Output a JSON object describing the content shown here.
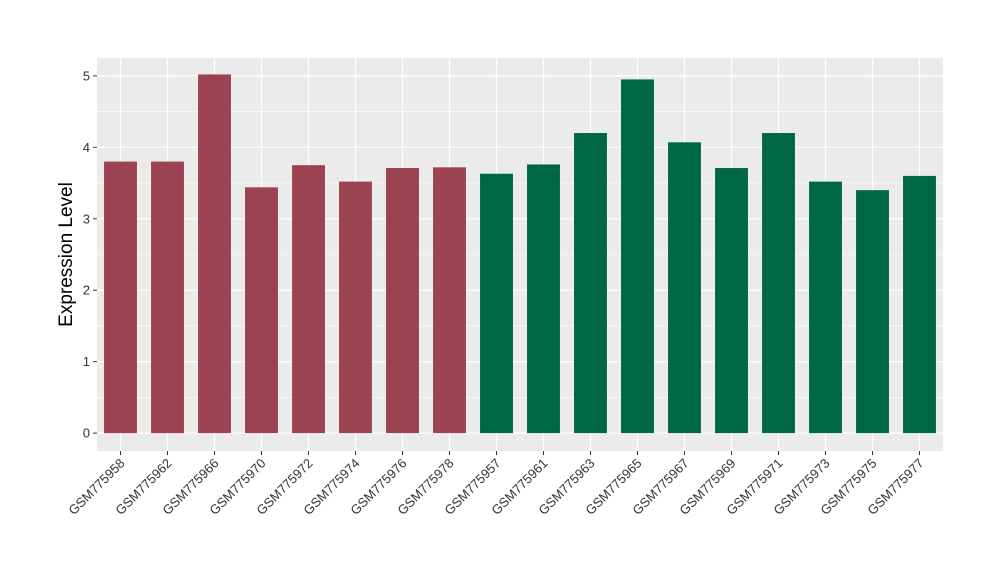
{
  "chart_data": {
    "type": "bar",
    "title": "",
    "xlabel": "",
    "ylabel": "Expression Level",
    "ylim": [
      -0.25,
      5.25
    ],
    "yticks": [
      0,
      1,
      2,
      3,
      4,
      5
    ],
    "grid": true,
    "legend": "none",
    "categories": [
      "GSM775958",
      "GSM775962",
      "GSM775966",
      "GSM775970",
      "GSM775972",
      "GSM775974",
      "GSM775976",
      "GSM775978",
      "GSM775957",
      "GSM775961",
      "GSM775963",
      "GSM775965",
      "GSM775967",
      "GSM775969",
      "GSM775971",
      "GSM775973",
      "GSM775975",
      "GSM775977"
    ],
    "values": [
      3.8,
      3.8,
      5.02,
      3.44,
      3.75,
      3.52,
      3.71,
      3.72,
      3.63,
      3.76,
      4.2,
      4.95,
      4.07,
      3.71,
      4.2,
      3.52,
      3.4,
      3.6
    ],
    "bar_colors": [
      "#9b4350",
      "#9b4350",
      "#9b4350",
      "#9b4350",
      "#9b4350",
      "#9b4350",
      "#9b4350",
      "#9b4350",
      "#006743",
      "#006743",
      "#006743",
      "#006743",
      "#006743",
      "#006743",
      "#006743",
      "#006743",
      "#006743",
      "#006743"
    ],
    "panel_background": "#ebebeb",
    "grid_color": "#ffffff"
  }
}
